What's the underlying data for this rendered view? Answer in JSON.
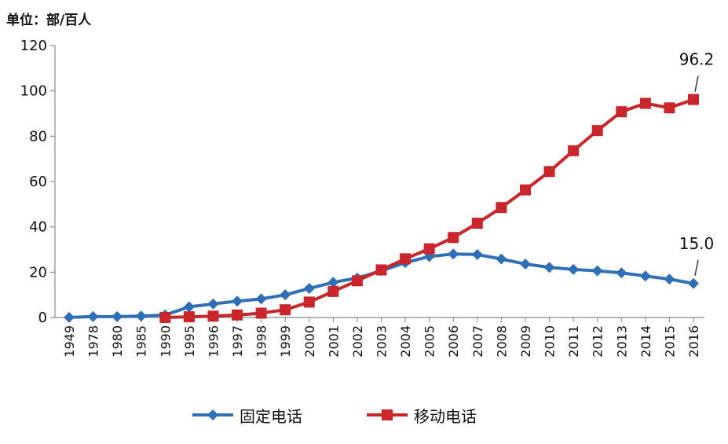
{
  "unit_label": "单位：部/百人",
  "chart_data": {
    "type": "line",
    "title": "",
    "xlabel": "",
    "ylabel": "",
    "ylim": [
      0,
      120
    ],
    "yticks": [
      0,
      20,
      40,
      60,
      80,
      100,
      120
    ],
    "categories": [
      "1949",
      "1978",
      "1980",
      "1985",
      "1990",
      "1995",
      "1996",
      "1997",
      "1998",
      "1999",
      "2000",
      "2001",
      "2002",
      "2003",
      "2004",
      "2005",
      "2006",
      "2007",
      "2008",
      "2009",
      "2010",
      "2011",
      "2012",
      "2013",
      "2014",
      "2015",
      "2016"
    ],
    "series": [
      {
        "name": "固定电话",
        "color": "#2f6fb5",
        "marker": "diamond",
        "values": [
          0.05,
          0.4,
          0.4,
          0.6,
          1.1,
          4.7,
          6.0,
          7.2,
          8.2,
          10.0,
          12.8,
          15.5,
          17.4,
          20.6,
          24.2,
          26.9,
          28.0,
          27.8,
          25.8,
          23.6,
          22.1,
          21.2,
          20.6,
          19.7,
          18.3,
          16.9,
          15.0
        ],
        "annotation": "15.0"
      },
      {
        "name": "移动电话",
        "color": "#c8262b",
        "marker": "square",
        "values": [
          null,
          null,
          null,
          null,
          0.0,
          0.3,
          0.6,
          1.1,
          1.9,
          3.4,
          6.8,
          11.5,
          16.2,
          21.0,
          25.9,
          30.3,
          35.3,
          41.6,
          48.5,
          56.3,
          64.4,
          73.6,
          82.5,
          90.8,
          94.5,
          92.5,
          96.2
        ],
        "annotation": "96.2"
      }
    ],
    "legend_position": "bottom",
    "grid": false
  }
}
